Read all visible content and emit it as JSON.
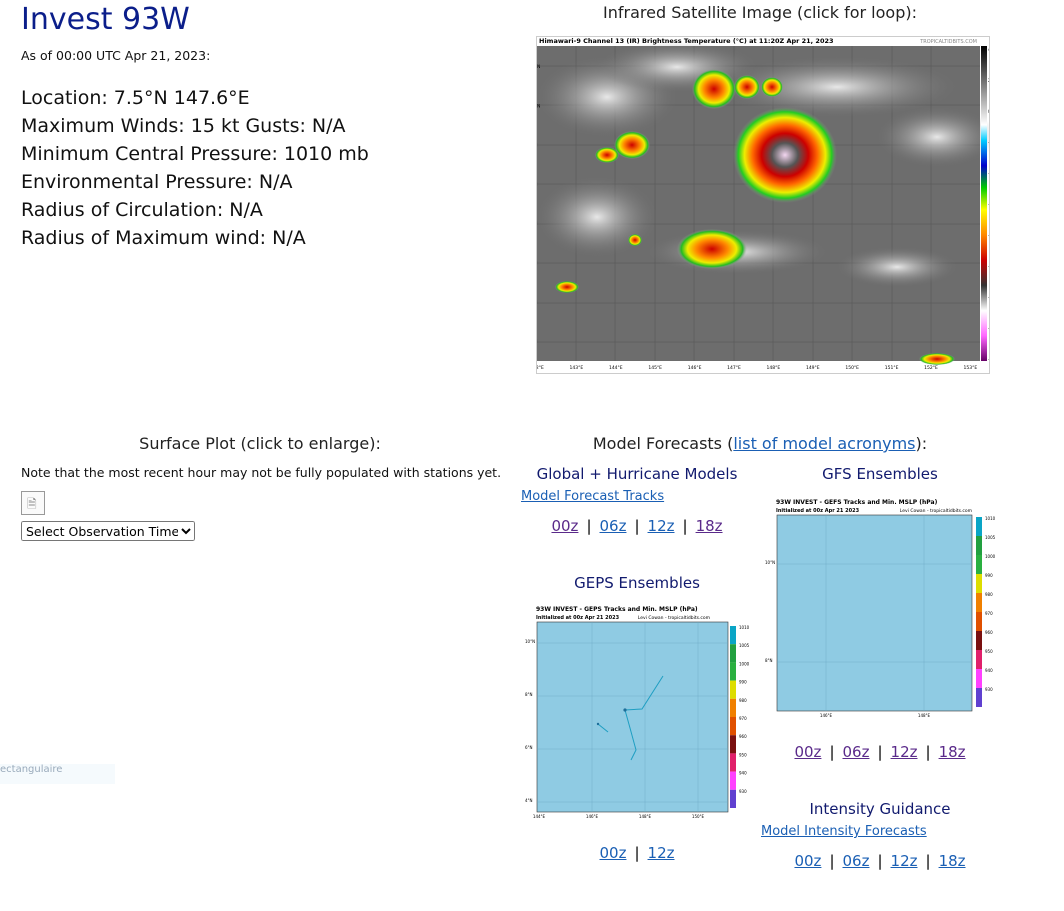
{
  "storm": {
    "title": "Invest 93W",
    "as_of": "As of 00:00 UTC Apr 21, 2023:",
    "location": "Location: 7.5°N 147.6°E",
    "winds": "Maximum Winds: 15 kt  Gusts: N/A",
    "min_pressure": "Minimum Central Pressure: 1010 mb",
    "env_pressure": "Environmental Pressure: N/A",
    "radius_circ": "Radius of Circulation: N/A",
    "radius_max_wind": "Radius of Maximum wind: N/A"
  },
  "satellite": {
    "heading": "Infrared Satellite Image (click for loop):",
    "image_title": "Himawari-9 Channel 13 (IR) Brightness Temperature (°C) at 11:20Z Apr 21, 2023",
    "credit": "TROPICALTIDBITS.COM",
    "lat_labels": [
      "11°N",
      "10°N",
      "9°N",
      "8°N",
      "7°N",
      "6°N",
      "5°N",
      "4°N"
    ],
    "lon_labels": [
      "142°E",
      "143°E",
      "144°E",
      "145°E",
      "146°E",
      "147°E",
      "148°E",
      "149°E",
      "150°E",
      "151°E",
      "152°E",
      "153°E"
    ],
    "scale_labels": [
      "40",
      "20",
      "0",
      "-20",
      "-30",
      "-40",
      "-50",
      "-60",
      "-70",
      "-80",
      "-90"
    ]
  },
  "surface": {
    "heading": "Surface Plot (click to enlarge):",
    "note": "Note that the most recent hour may not be fully populated with stations yet.",
    "select_value": "Select Observation Time...",
    "ghost_text": "ectangulaire"
  },
  "models": {
    "heading_prefix": "Model Forecasts (",
    "acronyms_link": "list of model acronyms",
    "heading_suffix": "):",
    "global": {
      "title": "Global + Hurricane Models",
      "tracks_link": "Model Forecast Tracks",
      "runs": [
        "00z",
        "06z",
        "12z",
        "18z"
      ]
    },
    "gfs": {
      "title": "GFS Ensembles",
      "plot_title": "93W INVEST - GEFS Tracks and Min. MSLP (hPa)",
      "plot_sub": "Initialized at 00z Apr 21 2023",
      "plot_credit": "Levi Cowan - tropicaltidbits.com",
      "lat_labels": [
        "10°N",
        "8°N"
      ],
      "lon_labels": [
        "146°E",
        "148°E"
      ],
      "scale_labels": [
        "1010",
        "1005",
        "1000",
        "990",
        "980",
        "970",
        "960",
        "950",
        "940",
        "930"
      ],
      "runs": [
        "00z",
        "06z",
        "12z",
        "18z"
      ]
    },
    "geps": {
      "title": "GEPS Ensembles",
      "plot_title": "93W INVEST - GEPS Tracks and Min. MSLP (hPa)",
      "plot_sub": "Initialized at 00z Apr 21 2023",
      "plot_credit": "Levi Cowan - tropicaltidbits.com",
      "lat_labels": [
        "10°N",
        "8°N",
        "6°N",
        "4°N"
      ],
      "lon_labels": [
        "144°E",
        "146°E",
        "148°E",
        "150°E"
      ],
      "scale_labels": [
        "1010",
        "1005",
        "1000",
        "990",
        "980",
        "970",
        "960",
        "950",
        "940",
        "930"
      ],
      "runs": [
        "00z",
        "12z"
      ]
    },
    "intensity": {
      "title": "Intensity Guidance",
      "link": "Model Intensity Forecasts",
      "runs": [
        "00z",
        "06z",
        "12z",
        "18z"
      ]
    }
  },
  "colors": {
    "title": "#0b1e8a",
    "link": "#1a5fb4",
    "visited": "#5a2a8a",
    "ocean": "#8fcbe3"
  }
}
